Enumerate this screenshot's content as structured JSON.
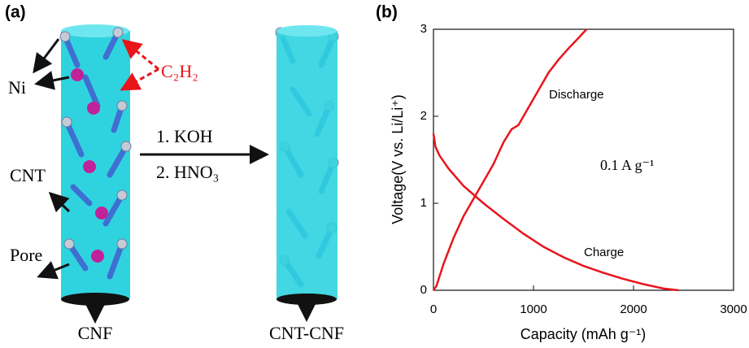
{
  "panel_a": {
    "label": "(a)",
    "ni": "Ni",
    "gas": "C₂H₂",
    "cnt": "CNT",
    "pore": "Pore",
    "cnf": "CNF",
    "step1": "1. KOH",
    "step2": "2. HNO₃",
    "product": "CNT-CNF"
  },
  "chart_data": {
    "type": "line",
    "panel_label": "(b)",
    "x_label": "Capacity (mAh g⁻¹)",
    "y_label": "Voltage(V vs. Li/Li⁺)",
    "annotation": "0.1 A g⁻¹",
    "xlim": [
      0,
      3000
    ],
    "xticks": [
      0,
      1000,
      2000,
      3000
    ],
    "ylim": [
      0,
      3
    ],
    "yticks": [
      0,
      1,
      2,
      3
    ],
    "series": [
      {
        "name": "Discharge",
        "color": "#e8151b",
        "x": [
          0,
          30,
          100,
          200,
          300,
          400,
          500,
          600,
          700,
          780,
          850,
          950,
          1050,
          1150,
          1250,
          1350,
          1450,
          1530
        ],
        "values": [
          0,
          0.05,
          0.3,
          0.6,
          0.85,
          1.05,
          1.25,
          1.45,
          1.7,
          1.85,
          1.9,
          2.1,
          2.3,
          2.5,
          2.65,
          2.78,
          2.9,
          3.0
        ]
      },
      {
        "name": "Charge",
        "color": "#e8151b",
        "x": [
          0,
          20,
          60,
          150,
          300,
          500,
          700,
          900,
          1100,
          1300,
          1500,
          1700,
          1900,
          2100,
          2300,
          2450
        ],
        "values": [
          1.8,
          1.65,
          1.55,
          1.4,
          1.2,
          1.0,
          0.82,
          0.65,
          0.5,
          0.38,
          0.28,
          0.2,
          0.13,
          0.07,
          0.02,
          0
        ]
      }
    ]
  }
}
